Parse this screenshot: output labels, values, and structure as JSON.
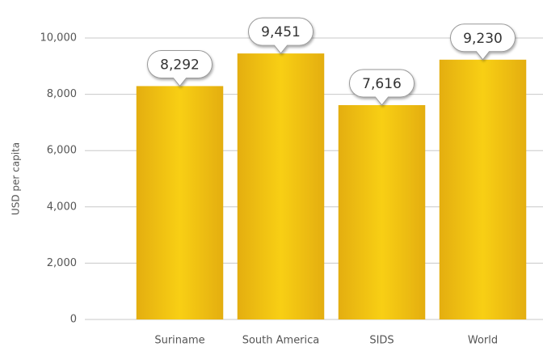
{
  "chart_data": {
    "type": "bar",
    "y_label": "USD per capita",
    "categories": [
      "Suriname",
      "South America",
      "SIDS",
      "World"
    ],
    "values": [
      8292,
      9451,
      7616,
      9230
    ],
    "value_labels": [
      "8,292",
      "9,451",
      "7,616",
      "9,230"
    ],
    "color": "#eebf12",
    "ylim": [
      0,
      10000
    ],
    "yticks": [
      0,
      {
        "value": 2000,
        "label": "2,000"
      },
      {
        "value": 4000,
        "label": "4,000"
      },
      {
        "value": 6000,
        "label": "6,000"
      },
      {
        "value": 8000,
        "label": "8,000"
      },
      {
        "value": 10000,
        "label": "10,000"
      }
    ],
    "grid": true
  }
}
